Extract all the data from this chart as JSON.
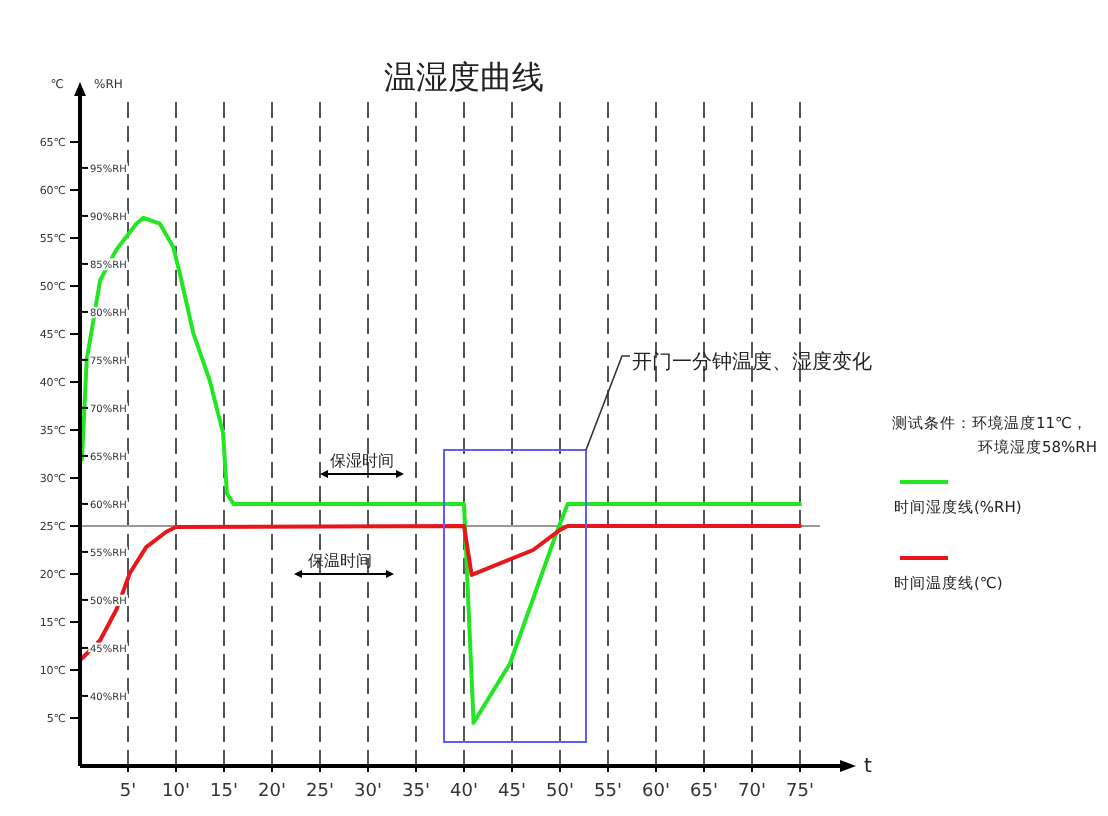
{
  "chart_data": {
    "type": "line",
    "title": "温湿度曲线",
    "xlabel": "t",
    "ylabel": "℃",
    "y2label": "%RH",
    "xlim": [
      0,
      80
    ],
    "xticks": [
      {
        "value": 5,
        "label": "5'"
      },
      {
        "value": 10,
        "label": "10'"
      },
      {
        "value": 15,
        "label": "15'"
      },
      {
        "value": 20,
        "label": "20'"
      },
      {
        "value": 25,
        "label": "25'"
      },
      {
        "value": 30,
        "label": "30'"
      },
      {
        "value": 35,
        "label": "35'"
      },
      {
        "value": 40,
        "label": "40'"
      },
      {
        "value": 45,
        "label": "45'"
      },
      {
        "value": 50,
        "label": "50'"
      },
      {
        "value": 55,
        "label": "55'"
      },
      {
        "value": 60,
        "label": "60'"
      },
      {
        "value": 65,
        "label": "65'"
      },
      {
        "value": 70,
        "label": "70'"
      },
      {
        "value": 75,
        "label": "75'"
      }
    ],
    "ylim": [
      0,
      70
    ],
    "yticks": [
      {
        "value": 5,
        "label": "5℃"
      },
      {
        "value": 10,
        "label": "10℃"
      },
      {
        "value": 15,
        "label": "15℃"
      },
      {
        "value": 20,
        "label": "20℃"
      },
      {
        "value": 25,
        "label": "25℃"
      },
      {
        "value": 30,
        "label": "30℃"
      },
      {
        "value": 35,
        "label": "35℃"
      },
      {
        "value": 40,
        "label": "40℃"
      },
      {
        "value": 45,
        "label": "45℃"
      },
      {
        "value": 50,
        "label": "50℃"
      },
      {
        "value": 55,
        "label": "55℃"
      },
      {
        "value": 60,
        "label": "60℃"
      },
      {
        "value": 65,
        "label": "65℃"
      }
    ],
    "y2lim": [
      32.7,
      102.7
    ],
    "y2ticks": [
      {
        "value": 40,
        "label": "40%RH"
      },
      {
        "value": 45,
        "label": "45%RH"
      },
      {
        "value": 50,
        "label": "50%RH"
      },
      {
        "value": 55,
        "label": "55%RH"
      },
      {
        "value": 60,
        "label": "60%RH"
      },
      {
        "value": 65,
        "label": "65%RH"
      },
      {
        "value": 70,
        "label": "70%RH"
      },
      {
        "value": 75,
        "label": "75%RH"
      },
      {
        "value": 80,
        "label": "80%RH"
      },
      {
        "value": 85,
        "label": "85%RH"
      },
      {
        "value": 90,
        "label": "90%RH"
      },
      {
        "value": 95,
        "label": "95%RH"
      }
    ],
    "grid": "x",
    "legend": "right",
    "marker": "none",
    "line_style": "solid",
    "series": [
      {
        "name": "时间湿度线(%RH)",
        "color": "#22e622",
        "axis": "y2",
        "x": [
          0.2,
          0.7,
          2.1,
          3.8,
          5.9,
          6.6,
          8.3,
          9.7,
          10.4,
          11.8,
          13.5,
          14.9,
          15.3,
          16,
          40,
          41,
          44.8,
          47.9,
          49.6,
          50.8,
          75
        ],
        "values": [
          64.6,
          75,
          83.3,
          86.5,
          89.2,
          89.8,
          89.2,
          86.8,
          84,
          77.8,
          72.9,
          67.4,
          61.1,
          60,
          60,
          37.2,
          43.4,
          52.1,
          56.9,
          60,
          60
        ]
      },
      {
        "name": "时间温度线(℃)",
        "color": "#e8161b",
        "x": [
          0,
          2.1,
          3.8,
          5.2,
          6.9,
          9,
          10,
          40,
          40.8,
          43.75,
          47.2,
          50,
          50.8,
          75
        ],
        "values": [
          11,
          13.1,
          16.3,
          20.1,
          22.8,
          24.4,
          24.9,
          25,
          19.9,
          21.1,
          22.5,
          24.6,
          25,
          25
        ]
      }
    ],
    "ref_lines": [
      {
        "axis": "y",
        "value": 25,
        "color": "#999999"
      }
    ],
    "annotations": [
      "保湿时间",
      "保温时间",
      "开门一分钟温度、湿度变化",
      "测试条件：环境温度11℃，",
      "环境湿度58%RH"
    ]
  }
}
